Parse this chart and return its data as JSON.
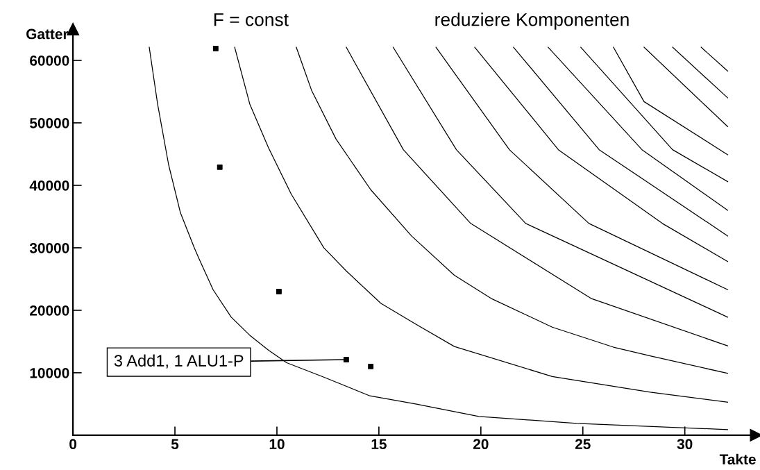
{
  "chart_data": {
    "type": "line",
    "title": "F = const",
    "subtitle": "reduziere Komponenten",
    "xlabel": "Takte",
    "ylabel": "Gatter",
    "xlim": [
      0,
      33.5
    ],
    "ylim": [
      0,
      65000
    ],
    "xticks": [
      0,
      5,
      10,
      15,
      20,
      25,
      30
    ],
    "yticks": [
      10000,
      20000,
      30000,
      40000,
      50000,
      60000
    ],
    "grid": false,
    "legend": false,
    "line_style": "solid",
    "marker": "none",
    "series": [
      {
        "color": "#000000",
        "x": [
          3.74,
          4.15,
          4.69,
          5.27,
          5.95,
          6.19,
          6.87,
          7.76,
          8.67,
          9.59,
          10.48,
          12.3,
          14.56,
          16.8,
          19.9,
          24.7,
          32.1
        ],
        "values": [
          62100,
          53000,
          43300,
          35600,
          30000,
          28200,
          23300,
          18900,
          16000,
          13600,
          11600,
          9300,
          6300,
          5000,
          3000,
          1900,
          900
        ]
      },
      {
        "color": "#000000",
        "x": [
          7.93,
          8.67,
          9.59,
          10.7,
          12.3,
          13.4,
          15.1,
          16.8,
          18.7,
          23.5,
          28.3,
          32.1
        ],
        "values": [
          62100,
          53000,
          46000,
          38600,
          30000,
          26300,
          21100,
          17800,
          14200,
          9400,
          6900,
          5300
        ]
      },
      {
        "color": "#000000",
        "x": [
          10.95,
          11.7,
          12.9,
          14.6,
          16.6,
          18.7,
          20.5,
          23.5,
          26.5,
          28.3,
          32.1
        ],
        "values": [
          62100,
          55200,
          47400,
          39300,
          31900,
          25600,
          21900,
          17300,
          14100,
          12700,
          9900
        ]
      },
      {
        "color": "#000000",
        "x": [
          13.4,
          16.2,
          19.5,
          25.4,
          32.1
        ],
        "values": [
          62100,
          45700,
          33900,
          21900,
          14300
        ]
      },
      {
        "color": "#000000",
        "x": [
          15.7,
          18.8,
          22.2,
          32.1
        ],
        "values": [
          62100,
          45700,
          33900,
          18900
        ]
      },
      {
        "color": "#000000",
        "x": [
          17.8,
          21.4,
          25.3,
          32.1
        ],
        "values": [
          62100,
          45700,
          33900,
          23300
        ]
      },
      {
        "color": "#000000",
        "x": [
          19.7,
          23.8,
          28.9,
          32.1
        ],
        "values": [
          62100,
          45700,
          33900,
          27800
        ]
      },
      {
        "color": "#000000",
        "x": [
          21.6,
          25.8,
          32.1
        ],
        "values": [
          62100,
          45700,
          31900
        ]
      },
      {
        "color": "#000000",
        "x": [
          23.3,
          27.9,
          32.1
        ],
        "values": [
          62100,
          45700,
          36000
        ]
      },
      {
        "color": "#000000",
        "x": [
          24.9,
          29.4,
          32.1
        ],
        "values": [
          62100,
          45700,
          40600
        ]
      },
      {
        "color": "#000000",
        "x": [
          26.5,
          28.0,
          32.1
        ],
        "values": [
          62100,
          53400,
          44900
        ]
      },
      {
        "color": "#000000",
        "x": [
          28.0,
          32.1
        ],
        "values": [
          62100,
          49400
        ]
      },
      {
        "color": "#000000",
        "x": [
          29.4,
          32.1
        ],
        "values": [
          62100,
          54000
        ]
      },
      {
        "color": "#000000",
        "x": [
          30.8,
          32.1
        ],
        "values": [
          62100,
          58300
        ]
      },
      {
        "type": "scatter",
        "marker": "square",
        "color": "#000000",
        "x": [
          7.0,
          7.2,
          10.1,
          13.4,
          14.6
        ],
        "values": [
          61900,
          42900,
          23000,
          12100,
          11000
        ]
      }
    ],
    "annotations": [
      {
        "text": "3 Add1, 1 ALU1-P",
        "x": 13.4,
        "y": 12100
      }
    ]
  }
}
